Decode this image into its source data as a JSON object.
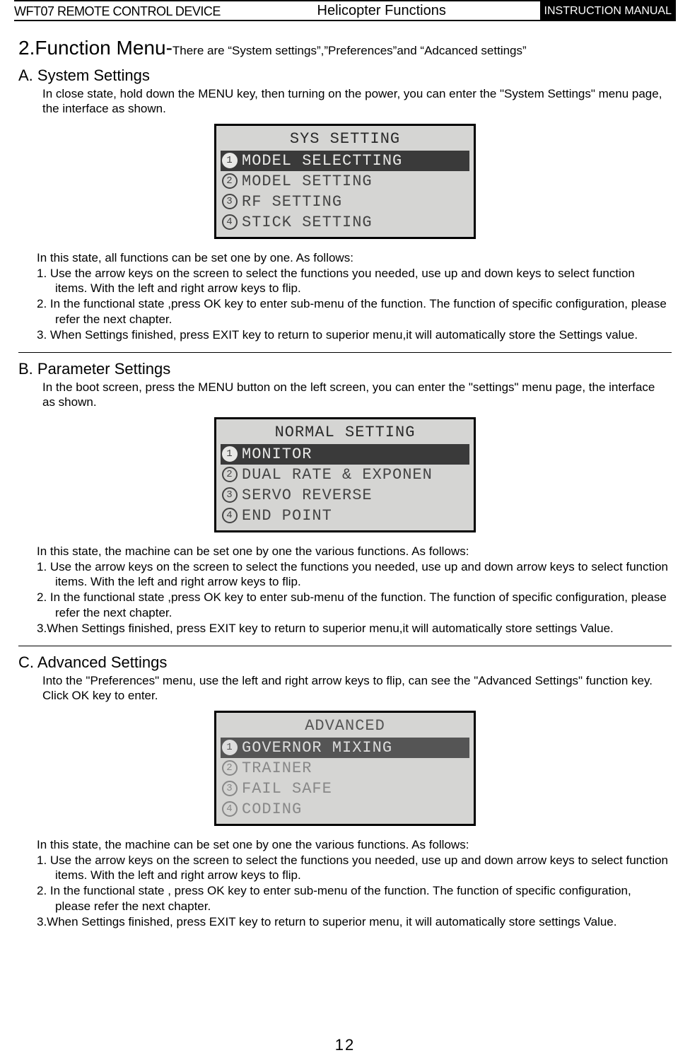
{
  "header": {
    "left": "WFT07 REMOTE CONTROL DEVICE",
    "center": "Helicopter Functions",
    "right": "INSTRUCTION MANUAL"
  },
  "main_heading": {
    "prefix": "2.Function Menu-",
    "sub": "There are “System settings”,”Preferences”and “Adcanced settings”"
  },
  "sectionA": {
    "title": "A. System Settings",
    "intro": "In close state, hold down the MENU key, then turning on the power, you can enter the \"System   Settings\" menu page, the interface as shown.",
    "lcd": {
      "title": "SYS SETTING",
      "items": [
        "MODEL SELECTTING",
        "MODEL SETTING",
        "RF SETTING",
        "STICK SETTING"
      ],
      "selected": 0
    },
    "lead": "In this state, all functions can be set one by one. As follows:",
    "steps": [
      "1. Use the arrow keys on the screen to select the functions you needed, use up and down keys to   select function items. With the left and right arrow keys to flip.",
      "2. In the functional state ,press OK key to enter sub-menu of the function. The function of specific configuration, please refer the next chapter.",
      "3. When Settings finished, press EXIT key to return to superior menu,it will automatically store the Settings value."
    ]
  },
  "sectionB": {
    "title": "B. Parameter Settings",
    "intro": "In the boot screen, press the MENU button on the left screen, you can enter the \"settings\" menu page, the interface as shown.",
    "lcd": {
      "title": "NORMAL SETTING",
      "items": [
        "MONITOR",
        "DUAL RATE & EXPONEN",
        "SERVO REVERSE",
        "END POINT"
      ],
      "selected": 0
    },
    "lead": "In this state, the machine can be set one by one the various functions. As follows:",
    "steps": [
      "1. Use the arrow keys on the screen to select the functions you needed, use up and down arrow keys to  select function  items. With the left and right arrow keys to flip.",
      "2. In the functional state ,press OK key to enter sub-menu of the function. The function of specific configuration, please refer the next chapter.",
      "3.When Settings finished, press EXIT key to return to superior menu,it will automatically store settings Value."
    ]
  },
  "sectionC": {
    "title": "C. Advanced Settings",
    "intro": "Into the \"Preferences\" menu, use the left and right arrow keys to flip, can see the \"Advanced Settings\" function key. Click OK key to enter.",
    "lcd": {
      "title": "ADVANCED",
      "items": [
        "GOVERNOR MIXING",
        "TRAINER",
        "FAIL SAFE",
        "CODING"
      ],
      "selected": 0,
      "faded": true
    },
    "lead": " In this state, the machine can be set one by one the various functions. As follows:",
    "steps": [
      "1. Use the arrow keys on the screen to select the functions you needed, use up and down arrow keys to select function items. With the left and right arrow keys to flip.",
      "2. In the functional state , press OK key to enter sub-menu of the function. The function of specific configuration, please refer the next chapter.",
      "3.When Settings finished, press EXIT key to return to superior menu, it will automatically store settings Value."
    ]
  },
  "page_number": "12"
}
